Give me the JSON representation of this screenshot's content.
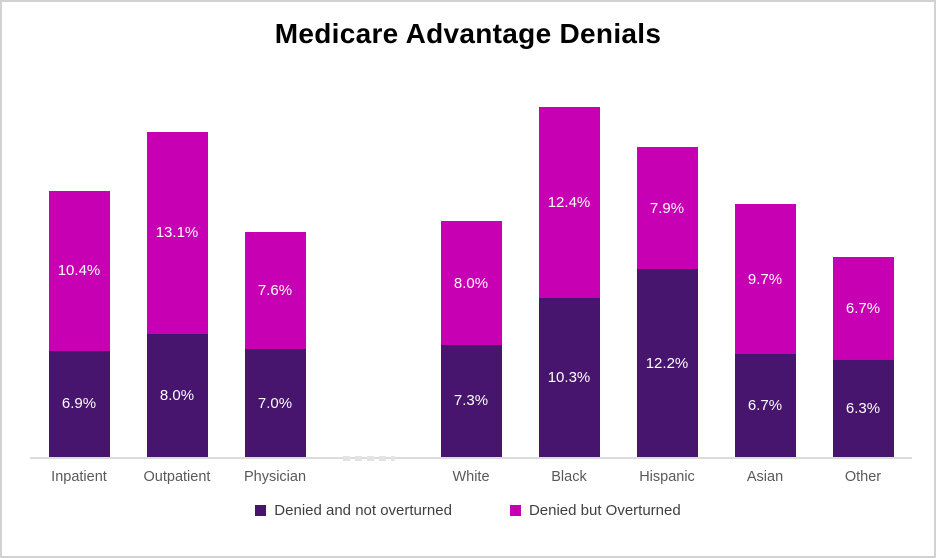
{
  "chart_data": {
    "type": "bar",
    "stacked": true,
    "title": "Medicare Advantage Denials",
    "categories": [
      "Inpatient",
      "Outpatient",
      "Physician",
      "White",
      "Black",
      "Hispanic",
      "Asian",
      "Other"
    ],
    "group_split_after_index": 2,
    "series": [
      {
        "name": "Denied and not overturned",
        "color": "#48156E",
        "values": [
          6.9,
          8.0,
          7.0,
          7.3,
          10.3,
          12.2,
          6.7,
          6.3
        ],
        "labels": [
          "6.9%",
          "8.0%",
          "7.0%",
          "7.3%",
          "10.3%",
          "12.2%",
          "6.7%",
          "6.3%"
        ]
      },
      {
        "name": "Denied but Overturned",
        "color": "#C800B4",
        "values": [
          10.4,
          13.1,
          7.6,
          8.0,
          12.4,
          7.9,
          9.7,
          6.7
        ],
        "labels": [
          "10.4%",
          "13.1%",
          "7.6%",
          "8.0%",
          "12.4%",
          "7.9%",
          "9.7%",
          "6.7%"
        ]
      }
    ],
    "totals": [
      17.3,
      21.1,
      14.6,
      15.3,
      22.7,
      20.1,
      16.4,
      13.0
    ],
    "value_label_color": "#FFFFFF",
    "axis": {
      "y_axis_visible": false,
      "gridlines": false,
      "baseline_color": "#DCDCDC",
      "category_label_color": "#595959"
    },
    "legend_position": "bottom"
  }
}
